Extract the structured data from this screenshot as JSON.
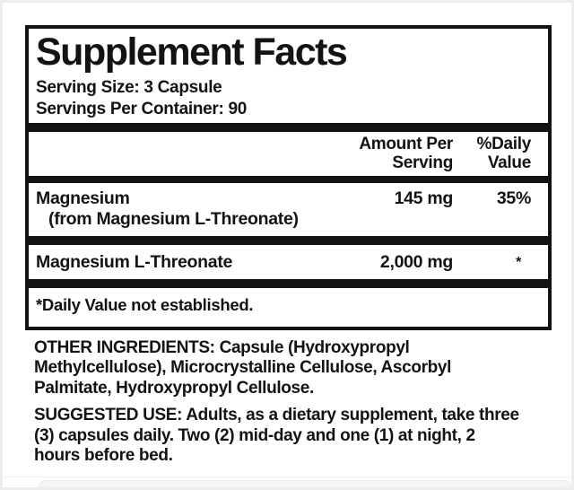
{
  "label": {
    "title": "Supplement Facts",
    "serving_size": "Serving Size: 3 Capsule",
    "servings_per_container": "Servings Per Container: 90",
    "columns": {
      "amount_header": "Amount Per Serving",
      "daily_value_header": "%Daily Value"
    },
    "rows": [
      {
        "name": "Magnesium",
        "sub": "(from Magnesium L-Threonate)",
        "amount": "145 mg",
        "daily_value": "35%"
      },
      {
        "name": "Magnesium L-Threonate",
        "amount": "2,000 mg",
        "daily_value": "*"
      }
    ],
    "footnote": "*Daily Value not established.",
    "other_ingredients": {
      "label": "OTHER INGREDIENTS:",
      "line1_rest": " Capsule (Hydroxypropyl",
      "line2": "Methylcellulose), Microcrystalline Cellulose, Ascorbyl",
      "line3": "Palmitate, Hydroxypropyl Cellulose."
    },
    "suggested_use": {
      "label": "SUGGESTED USE:",
      "line1_rest": " Adults, as a dietary supplement, take three",
      "line2": "(3) capsules daily. Two (2) mid-day and one (1) at night, 2",
      "line3": "hours before bed."
    }
  },
  "colors": {
    "text": "#131313",
    "rule": "#131313",
    "panel_border": "#131313",
    "background": "#ffffff",
    "photo_frame": "#ededed"
  }
}
